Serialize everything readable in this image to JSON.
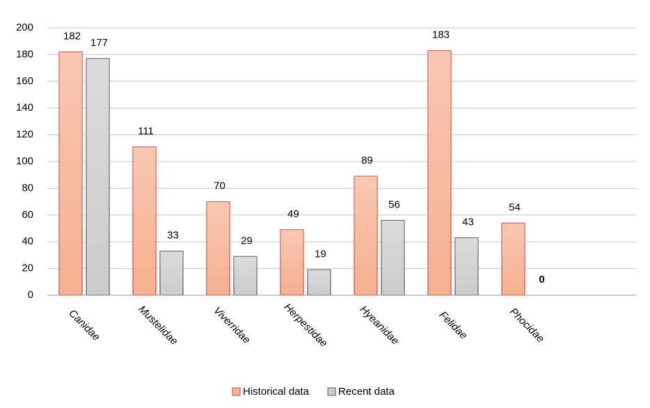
{
  "chart_data": {
    "type": "bar",
    "categories": [
      "Canidae",
      "Mustelidae",
      "Viverridae",
      "Herpestidae",
      "Hyeanidae",
      "Felidae",
      "Phocidae"
    ],
    "series": [
      {
        "name": "Historical data",
        "color": "#f6b08f",
        "values": [
          182,
          111,
          70,
          49,
          89,
          183,
          54
        ]
      },
      {
        "name": "Recent data",
        "color": "#cccccc",
        "values": [
          177,
          33,
          29,
          19,
          56,
          43,
          0
        ]
      }
    ],
    "ylim": [
      0,
      200
    ],
    "yticks": [
      0,
      20,
      40,
      60,
      80,
      100,
      120,
      140,
      160,
      180,
      200
    ],
    "grid": true,
    "legend": "bottom"
  }
}
